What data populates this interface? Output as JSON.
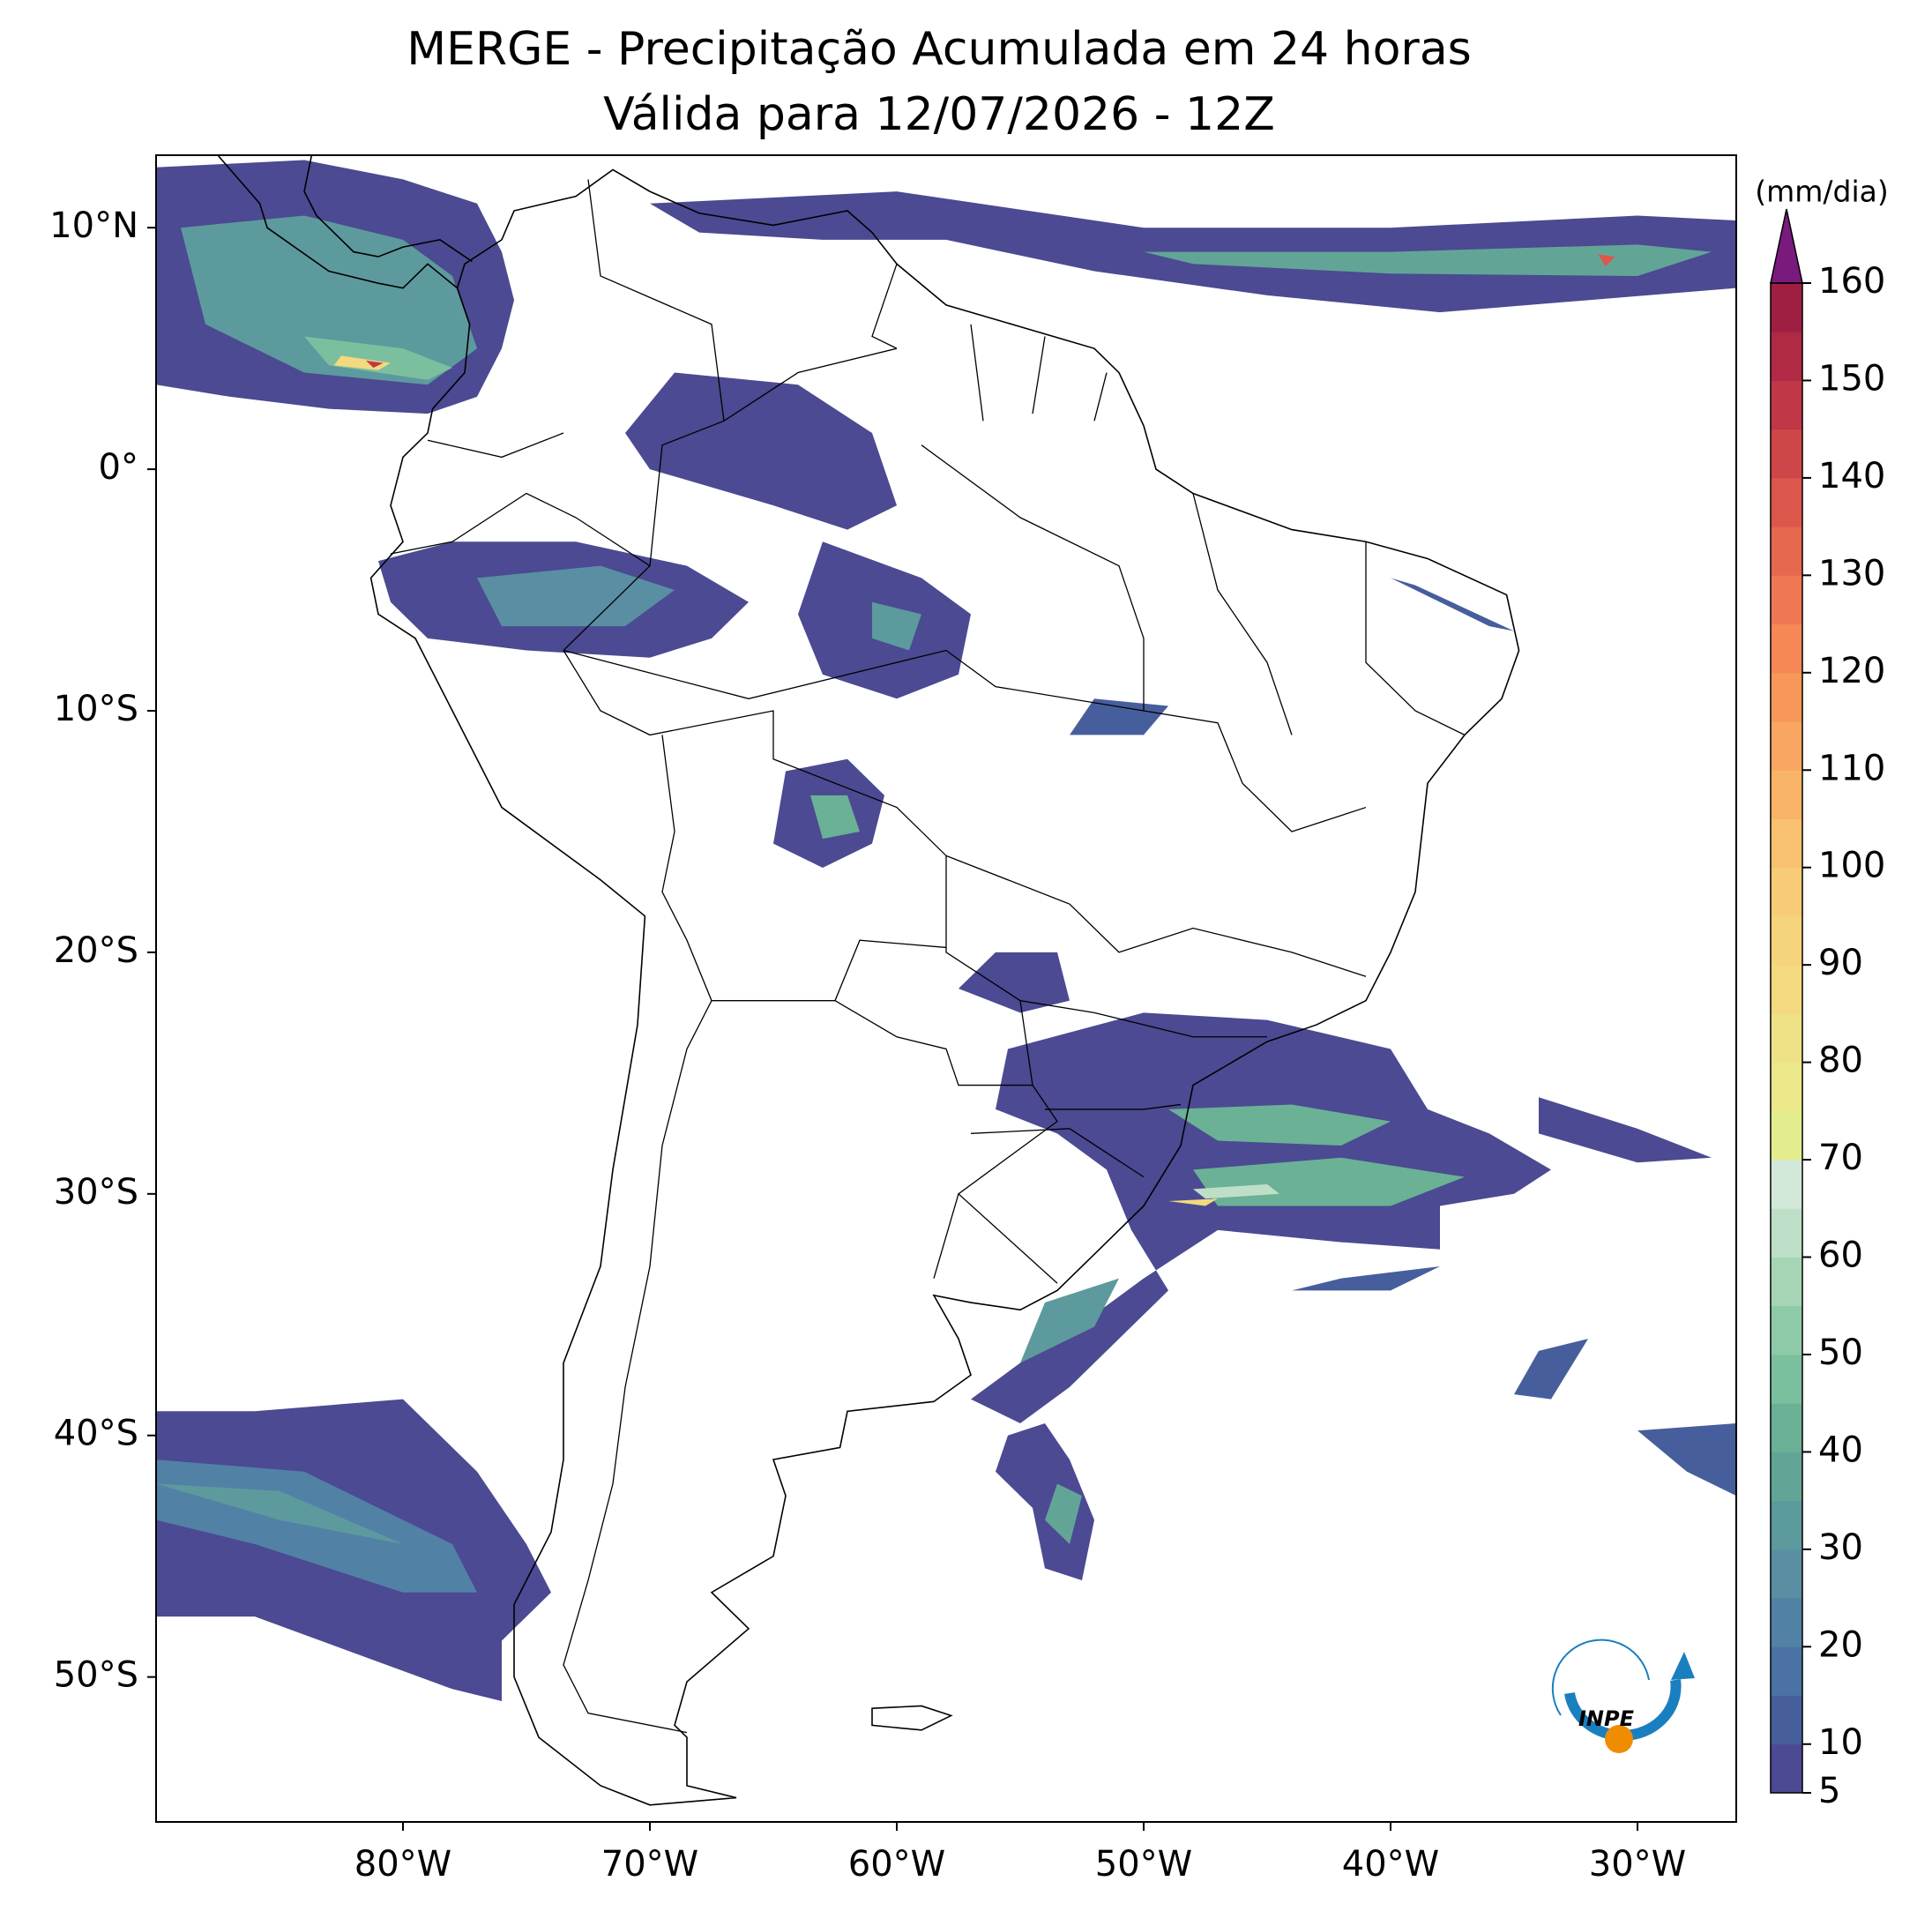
{
  "chart_data": {
    "type": "contour_map",
    "title": "MERGE - Precipitação Acumulada em 24 horas",
    "subtitle": "Válida para 12/07/2026 - 12Z",
    "xlim": [
      -90,
      -26
    ],
    "ylim": [
      -56,
      13
    ],
    "xticks": [
      {
        "value": -80,
        "label": "80°W"
      },
      {
        "value": -70,
        "label": "70°W"
      },
      {
        "value": -60,
        "label": "60°W"
      },
      {
        "value": -50,
        "label": "50°W"
      },
      {
        "value": -40,
        "label": "40°W"
      },
      {
        "value": -30,
        "label": "30°W"
      }
    ],
    "yticks": [
      {
        "value": 10,
        "label": "10°N"
      },
      {
        "value": 0,
        "label": "0°"
      },
      {
        "value": -10,
        "label": "10°S"
      },
      {
        "value": -20,
        "label": "20°S"
      },
      {
        "value": -30,
        "label": "30°S"
      },
      {
        "value": -40,
        "label": "40°S"
      },
      {
        "value": -50,
        "label": "50°S"
      }
    ],
    "colorbar": {
      "label": "(mm/dia)",
      "levels": [
        5,
        10,
        15,
        20,
        25,
        30,
        35,
        40,
        45,
        50,
        55,
        60,
        65,
        70,
        75,
        80,
        85,
        90,
        95,
        100,
        105,
        110,
        115,
        120,
        125,
        130,
        135,
        140,
        145,
        150,
        155,
        160
      ],
      "colors": [
        "#4b4a92",
        "#465e9c",
        "#4a72a3",
        "#5281a6",
        "#5a8ea3",
        "#5d9a9d",
        "#62a596",
        "#6ab196",
        "#7bbf9f",
        "#8fcaa8",
        "#a6d5b6",
        "#bddfc7",
        "#d2e8d9",
        "#e4ed8e",
        "#ebe98a",
        "#efe185",
        "#f3d97f",
        "#f6d47c",
        "#f8cc77",
        "#f9c070",
        "#f9b468",
        "#f8a661",
        "#f7985a",
        "#f58855",
        "#ef7852",
        "#e6684e",
        "#dc574b",
        "#cf4649",
        "#c13747",
        "#b02a45",
        "#9e1f42"
      ],
      "extend_color": "#7b1a7d",
      "ticks": [
        5,
        10,
        20,
        30,
        40,
        50,
        60,
        70,
        80,
        90,
        100,
        110,
        120,
        130,
        140,
        150,
        160
      ]
    }
  },
  "logo": "INPE"
}
